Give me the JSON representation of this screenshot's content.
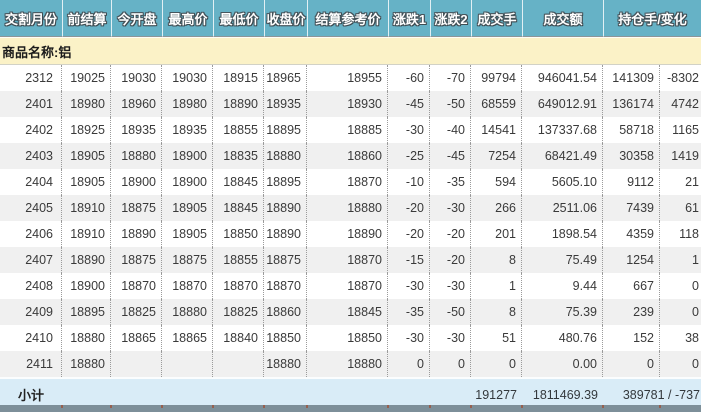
{
  "section": {
    "label": "商品名称:铝"
  },
  "table": {
    "headers": [
      "交割月份",
      "前结算",
      "今开盘",
      "最高价",
      "最低价",
      "收盘价",
      "结算参考价",
      "涨跌1",
      "涨跌2",
      "成交手",
      "成交额",
      "持仓手/变化"
    ],
    "rows": [
      [
        "2312",
        "19025",
        "19030",
        "19030",
        "18915",
        "18965",
        "18955",
        "-60",
        "-70",
        "99794",
        "946041.54",
        "141309",
        "-8302"
      ],
      [
        "2401",
        "18980",
        "18960",
        "18980",
        "18890",
        "18935",
        "18930",
        "-45",
        "-50",
        "68559",
        "649012.91",
        "136174",
        "4742"
      ],
      [
        "2402",
        "18925",
        "18935",
        "18935",
        "18855",
        "18895",
        "18885",
        "-30",
        "-40",
        "14541",
        "137337.68",
        "58718",
        "1165"
      ],
      [
        "2403",
        "18905",
        "18880",
        "18900",
        "18835",
        "18880",
        "18860",
        "-25",
        "-45",
        "7254",
        "68421.49",
        "30358",
        "1419"
      ],
      [
        "2404",
        "18905",
        "18900",
        "18900",
        "18845",
        "18895",
        "18870",
        "-10",
        "-35",
        "594",
        "5605.10",
        "9112",
        "21"
      ],
      [
        "2405",
        "18910",
        "18875",
        "18905",
        "18845",
        "18890",
        "18880",
        "-20",
        "-30",
        "266",
        "2511.06",
        "7439",
        "61"
      ],
      [
        "2406",
        "18910",
        "18890",
        "18905",
        "18850",
        "18890",
        "18890",
        "-20",
        "-20",
        "201",
        "1898.54",
        "4359",
        "118"
      ],
      [
        "2407",
        "18890",
        "18875",
        "18875",
        "18855",
        "18875",
        "18870",
        "-15",
        "-20",
        "8",
        "75.49",
        "1254",
        "1"
      ],
      [
        "2408",
        "18900",
        "18870",
        "18870",
        "18870",
        "18870",
        "18870",
        "-30",
        "-30",
        "1",
        "9.44",
        "667",
        "0"
      ],
      [
        "2409",
        "18895",
        "18825",
        "18880",
        "18825",
        "18860",
        "18845",
        "-35",
        "-50",
        "8",
        "75.39",
        "239",
        "0"
      ],
      [
        "2410",
        "18880",
        "18865",
        "18865",
        "18840",
        "18850",
        "18850",
        "-30",
        "-30",
        "51",
        "480.76",
        "152",
        "38"
      ],
      [
        "2411",
        "18880",
        "",
        "",
        "",
        "18880",
        "18880",
        "0",
        "0",
        "0",
        "0.00",
        "0",
        "0"
      ]
    ],
    "subtotal": {
      "label": "小计",
      "volume": "191277",
      "turnover": "1811469.39",
      "open_interest": "389781 / -737"
    }
  },
  "colors": {
    "header_bg": "#66b2c6",
    "header_text": "#ffffff",
    "section_bg": "#fbf2c7",
    "row_alt": "#f0f0f0",
    "subtotal_bg": "#d9ecf7",
    "divider": "#7d8f99"
  }
}
